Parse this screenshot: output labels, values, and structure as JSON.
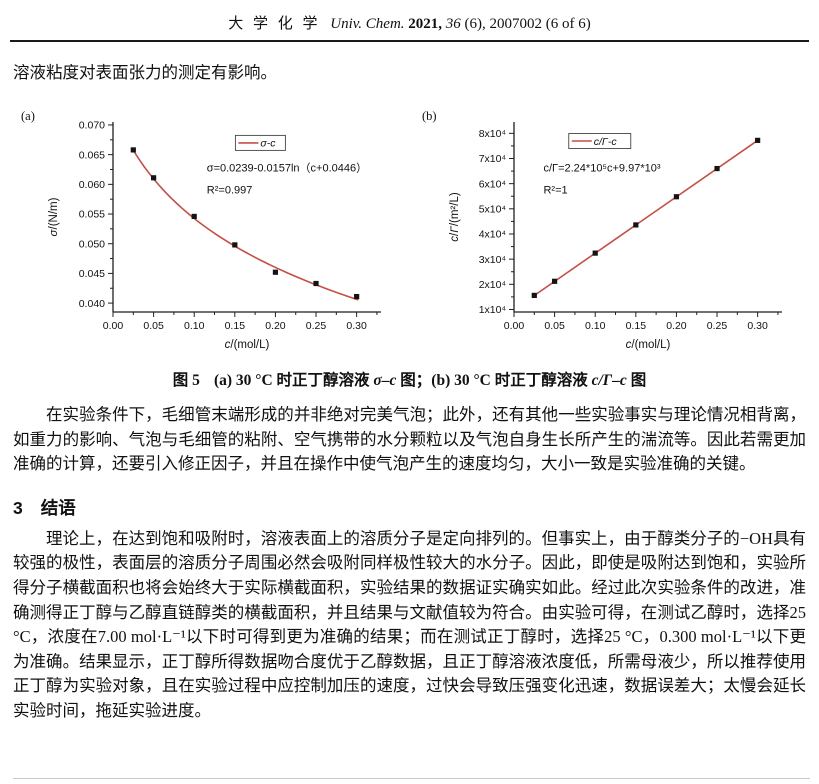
{
  "header": {
    "journal_cn": "大 学 化 学",
    "journal_en": "Univ. Chem.",
    "year": "2021,",
    "volume": "36",
    "issue_info": "(6), 2007002 (6 of 6)"
  },
  "intro_text": "溶液粘度对表面张力的测定有影响。",
  "figure_caption": {
    "label": "图 5",
    "part_a_prefix": "(a) 30 °C 时正丁醇溶液 ",
    "part_a_var": "σ–c",
    "part_mid": " 图；(b) 30 °C 时正丁醇溶液 ",
    "part_b_var": "c/Γ–c",
    "part_suffix": " 图"
  },
  "body": {
    "paragraph1": "在实验条件下，毛细管末端形成的并非绝对完美气泡；此外，还有其他一些实验事实与理论情况相背离，如重力的影响、气泡与毛细管的粘附、空气携带的水分颗粒以及气泡自身生长所产生的湍流等。因此若需更加准确的计算，还要引入修正因子，并且在操作中使气泡产生的速度均匀，大小一致是实验准确的关键。",
    "paragraph2": "理论上，在达到饱和吸附时，溶液表面上的溶质分子是定向排列的。但事实上，由于醇类分子的−OH具有较强的极性，表面层的溶质分子周围必然会吸附同样极性较大的水分子。因此，即使是吸附达到饱和，实验所得分子横截面积也将会始终大于实际横截面积，实验结果的数据证实确实如此。经过此次实验条件的改进，准确测得正丁醇与乙醇直链醇类的横截面积，并且结果与文献值较为符合。由实验可得，在测试乙醇时，选择25 °C，浓度在7.00 mol·L⁻¹以下时可得到更为准确的结果；而在测试正丁醇时，选择25 °C，0.300 mol·L⁻¹以下更为准确。结果显示，正丁醇所得数据吻合度优于乙醇数据，且正丁醇溶液浓度低，所需母液少，所以推荐使用正丁醇为实验对象，且在实验过程中应控制加压的速度，过快会导致压强变化迅速，数据误差大；太慢会延长实验时间，拖延实验进度。"
  },
  "section": {
    "number": "3",
    "title": "结语"
  },
  "chart_data": [
    {
      "type": "scatter",
      "panel_label": "(a)",
      "legend": {
        "label": "σ-c",
        "fx": 0.55,
        "fy": 0.11,
        "w": 50
      },
      "annotations": [
        {
          "text": "σ=0.0239-0.0157ln（c+0.0446）",
          "fx": 0.35,
          "fy": 0.26
        },
        {
          "text": "R²=0.997",
          "fx": 0.35,
          "fy": 0.375
        }
      ],
      "xlabel_parts": [
        {
          "t": "c",
          "i": true
        },
        {
          "t": "/(mol/L)",
          "i": false
        }
      ],
      "ylabel_parts": [
        {
          "t": "σ",
          "i": true
        },
        {
          "t": "/(N/m)",
          "i": false
        }
      ],
      "xlim": [
        0,
        0.33
      ],
      "ylim": [
        0.0385,
        0.0705
      ],
      "xticks": [
        0,
        0.05,
        0.1,
        0.15,
        0.2,
        0.25,
        0.3
      ],
      "xtick_labels": [
        "0.00",
        "0.05",
        "0.10",
        "0.15",
        "0.20",
        "0.25",
        "0.30"
      ],
      "xminor": [
        0.025,
        0.075,
        0.125,
        0.175,
        0.225,
        0.275,
        0.325
      ],
      "yticks": [
        0.04,
        0.045,
        0.05,
        0.055,
        0.06,
        0.065,
        0.07
      ],
      "ytick_labels": [
        "0.040",
        "0.045",
        "0.050",
        "0.055",
        "0.060",
        "0.065",
        "0.070"
      ],
      "yminor": [
        0.0425,
        0.0475,
        0.0525,
        0.0575,
        0.0625,
        0.0675
      ],
      "points": [
        [
          0.025,
          0.0658
        ],
        [
          0.05,
          0.0611
        ],
        [
          0.1,
          0.0546
        ],
        [
          0.15,
          0.0498
        ],
        [
          0.2,
          0.0452
        ],
        [
          0.25,
          0.0433
        ],
        [
          0.3,
          0.0411
        ]
      ],
      "fit": {
        "kind": "log",
        "a": 0.0239,
        "b": 0.0157,
        "c0": 0.0446,
        "range": [
          0.024,
          0.302
        ]
      },
      "line_color": "#c44f45",
      "marker_color": "#141414"
    },
    {
      "type": "scatter",
      "panel_label": "(b)",
      "legend": {
        "label": "c/Γ-c",
        "fx": 0.32,
        "fy": 0.1,
        "w": 62
      },
      "annotations": [
        {
          "text": "c/Γ=2.24*10⁵c+9.97*10³",
          "fx": 0.11,
          "fy": 0.26
        },
        {
          "text": "R²=1",
          "fx": 0.11,
          "fy": 0.375
        }
      ],
      "xlabel_parts": [
        {
          "t": "c",
          "i": true
        },
        {
          "t": "/(mol/L)",
          "i": false
        }
      ],
      "ylabel_parts": [
        {
          "t": "c",
          "i": true
        },
        {
          "t": "/",
          "i": false
        },
        {
          "t": "Γ",
          "i": true
        },
        {
          "t": "/(m²/L)",
          "i": false
        }
      ],
      "xlim": [
        0,
        0.33
      ],
      "ylim": [
        9000,
        84500
      ],
      "xticks": [
        0,
        0.05,
        0.1,
        0.15,
        0.2,
        0.25,
        0.3
      ],
      "xtick_labels": [
        "0.00",
        "0.05",
        "0.10",
        "0.15",
        "0.20",
        "0.25",
        "0.30"
      ],
      "xminor": [
        0.025,
        0.075,
        0.125,
        0.175,
        0.225,
        0.275,
        0.325
      ],
      "yticks": [
        10000,
        20000,
        30000,
        40000,
        50000,
        60000,
        70000,
        80000
      ],
      "ytick_labels": [
        "1x10⁴",
        "2x10⁴",
        "3x10⁴",
        "4x10⁴",
        "5x10⁴",
        "6x10⁴",
        "7x10⁴",
        "8x10⁴"
      ],
      "yminor": [
        15000,
        25000,
        35000,
        45000,
        55000,
        65000,
        75000
      ],
      "points": [
        [
          0.025,
          15600
        ],
        [
          0.05,
          21200
        ],
        [
          0.1,
          32400
        ],
        [
          0.15,
          43600
        ],
        [
          0.2,
          54800
        ],
        [
          0.25,
          66000
        ],
        [
          0.3,
          77200
        ]
      ],
      "fit": {
        "kind": "linear",
        "m": 224000,
        "b": 9970,
        "range": [
          0.025,
          0.3
        ]
      },
      "line_color": "#c44f45",
      "marker_color": "#141414"
    }
  ]
}
